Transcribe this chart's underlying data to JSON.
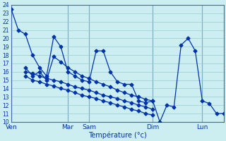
{
  "background_color": "#cceef0",
  "grid_color": "#99cccc",
  "line_color": "#0033aa",
  "xlabel": "Température (°c)",
  "ylim": [
    10,
    24
  ],
  "xlim": [
    0,
    15
  ],
  "yticks": [
    10,
    11,
    12,
    13,
    14,
    15,
    16,
    17,
    18,
    19,
    20,
    21,
    22,
    23,
    24
  ],
  "day_labels": [
    "Ven",
    "Mar",
    "Sam",
    "Dim",
    "Lun"
  ],
  "day_positions": [
    0,
    4.0,
    5.5,
    10.0,
    13.5
  ],
  "series1_x": [
    0,
    0.5,
    1.0,
    1.5,
    2.0,
    2.5,
    3.0,
    3.5,
    4.0,
    4.5,
    5.0,
    5.5,
    6.0,
    6.5,
    7.0,
    7.5,
    8.0,
    8.5,
    9.0,
    9.5,
    10.0,
    10.5,
    11.0,
    11.5,
    12.0,
    12.5,
    13.0,
    13.5,
    14.0,
    14.5,
    15.0
  ],
  "series1_y": [
    23.5,
    21.0,
    20.5,
    18.0,
    16.5,
    15.5,
    20.2,
    19.0,
    16.0,
    15.5,
    15.0,
    14.8,
    18.5,
    18.5,
    16.0,
    14.8,
    14.5,
    14.5,
    12.5,
    12.3,
    12.5,
    10.0,
    12.0,
    11.8,
    19.2,
    20.0,
    18.5,
    12.5,
    12.2,
    11.0,
    11.0
  ],
  "series2_x": [
    1.0,
    1.5,
    2.0,
    2.5,
    3.0,
    3.5,
    4.0,
    4.5,
    5.0,
    5.5,
    6.0,
    6.5,
    7.0,
    7.5,
    8.0,
    8.5,
    9.0,
    9.5,
    10.0
  ],
  "series2_y": [
    16.5,
    15.5,
    16.0,
    15.0,
    17.8,
    17.2,
    16.5,
    16.0,
    15.5,
    15.2,
    14.8,
    14.5,
    14.2,
    13.8,
    13.5,
    13.2,
    13.0,
    12.7,
    12.5
  ],
  "series3_x": [
    1.0,
    1.5,
    2.0,
    2.5,
    3.0,
    3.5,
    4.0,
    4.5,
    5.0,
    5.5,
    6.0,
    6.5,
    7.0,
    7.5,
    8.0,
    8.5,
    9.0,
    9.5,
    10.0
  ],
  "series3_y": [
    15.5,
    15.0,
    14.8,
    14.5,
    14.3,
    14.0,
    13.8,
    13.5,
    13.2,
    13.0,
    12.8,
    12.5,
    12.3,
    12.0,
    11.8,
    11.5,
    11.3,
    11.0,
    10.8
  ],
  "series4_x": [
    1.0,
    1.5,
    2.0,
    2.5,
    3.0,
    3.5,
    4.0,
    4.5,
    5.0,
    5.5,
    6.0,
    6.5,
    7.0,
    7.5,
    8.0,
    8.5,
    9.0,
    9.5,
    10.0
  ],
  "series4_y": [
    16.0,
    15.8,
    15.5,
    15.2,
    15.0,
    14.8,
    14.5,
    14.2,
    14.0,
    13.8,
    13.5,
    13.2,
    13.0,
    12.8,
    12.5,
    12.3,
    12.0,
    11.8,
    11.5
  ]
}
